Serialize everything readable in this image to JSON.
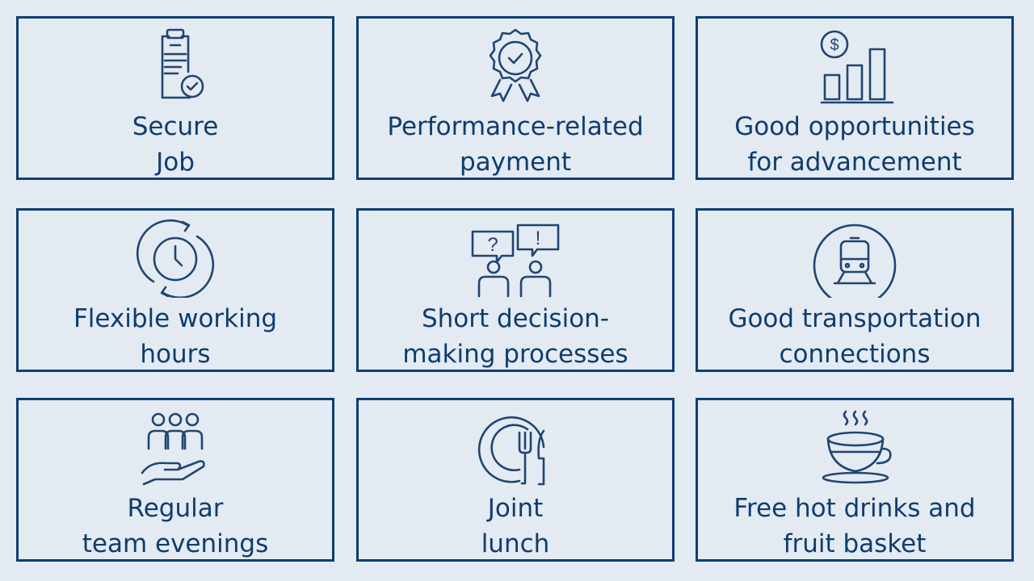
{
  "colors": {
    "background": "#e3eaf1",
    "border": "#0b3f73",
    "text": "#0d3d6f",
    "icon": "#1f4572"
  },
  "cards": [
    {
      "icon": "clipboard-check-icon",
      "lines": [
        "Secure",
        "Job"
      ]
    },
    {
      "icon": "award-badge-icon",
      "lines": [
        "Performance-related",
        "payment"
      ]
    },
    {
      "icon": "dollar-bar-chart-icon",
      "lines": [
        "Good opportunities",
        "for advancement"
      ]
    },
    {
      "icon": "clock-cycle-icon",
      "lines": [
        "Flexible working",
        "hours"
      ]
    },
    {
      "icon": "discussion-people-icon",
      "lines": [
        "Short decision-",
        "making processes"
      ]
    },
    {
      "icon": "train-icon",
      "lines": [
        "Good transportation",
        "connections"
      ]
    },
    {
      "icon": "team-hand-icon",
      "lines": [
        "Regular",
        "team evenings"
      ]
    },
    {
      "icon": "plate-cutlery-icon",
      "lines": [
        "Joint",
        "lunch"
      ]
    },
    {
      "icon": "hot-cup-icon",
      "lines": [
        "Free hot drinks and",
        "fruit basket"
      ]
    }
  ]
}
